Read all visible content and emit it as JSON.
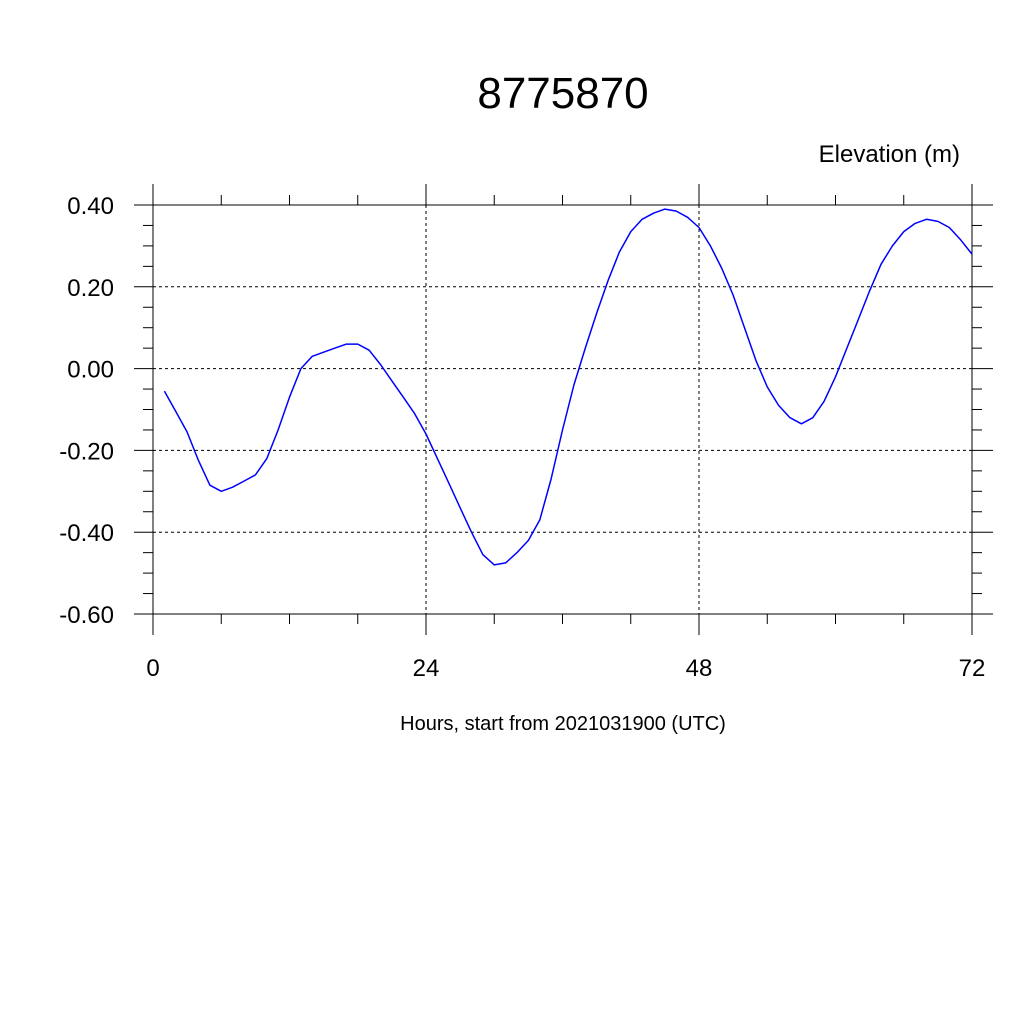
{
  "chart_data": {
    "type": "line",
    "title": "8775870",
    "ylabel": "Elevation (m)",
    "xlabel": "Hours, start from 2021031900 (UTC)",
    "xlim": [
      0,
      72
    ],
    "ylim": [
      -0.6,
      0.4
    ],
    "x_ticks": [
      0,
      24,
      48,
      72
    ],
    "x_tick_labels": [
      "0",
      "24",
      "48",
      "72"
    ],
    "y_ticks": [
      -0.6,
      -0.4,
      -0.2,
      0.0,
      0.2,
      0.4
    ],
    "y_tick_labels": [
      "-0.60",
      "-0.40",
      "-0.20",
      "0.00",
      "0.20",
      "0.40"
    ],
    "grid": true,
    "line_color": "#0000ff",
    "series": [
      {
        "x": [
          1,
          2,
          3,
          4,
          5,
          6,
          7,
          8,
          9,
          10,
          11,
          12,
          13,
          14,
          15,
          16,
          17,
          18,
          19,
          20,
          21,
          22,
          23,
          24,
          25,
          26,
          27,
          28,
          29,
          30,
          31,
          32,
          33,
          34,
          35,
          36,
          37,
          38,
          39,
          40,
          41,
          42,
          43,
          44,
          45,
          46,
          47,
          48,
          49,
          50,
          51,
          52,
          53,
          54,
          55,
          56,
          57,
          58,
          59,
          60,
          61,
          62,
          63,
          64,
          65,
          66,
          67,
          68,
          69,
          70,
          71,
          72
        ],
        "values": [
          -0.055,
          -0.105,
          -0.155,
          -0.225,
          -0.285,
          -0.3,
          -0.29,
          -0.275,
          -0.26,
          -0.22,
          -0.15,
          -0.07,
          0.0,
          0.03,
          0.04,
          0.05,
          0.06,
          0.06,
          0.045,
          0.01,
          -0.03,
          -0.07,
          -0.11,
          -0.16,
          -0.22,
          -0.28,
          -0.34,
          -0.4,
          -0.455,
          -0.48,
          -0.475,
          -0.45,
          -0.42,
          -0.37,
          -0.27,
          -0.15,
          -0.04,
          0.05,
          0.135,
          0.215,
          0.285,
          0.335,
          0.365,
          0.38,
          0.39,
          0.385,
          0.37,
          0.345,
          0.3,
          0.245,
          0.18,
          0.1,
          0.02,
          -0.045,
          -0.09,
          -0.12,
          -0.135,
          -0.12,
          -0.08,
          -0.02,
          0.05,
          0.12,
          0.19,
          0.255,
          0.3,
          0.335,
          0.355,
          0.365,
          0.36,
          0.345,
          0.315,
          0.28
        ]
      }
    ]
  }
}
